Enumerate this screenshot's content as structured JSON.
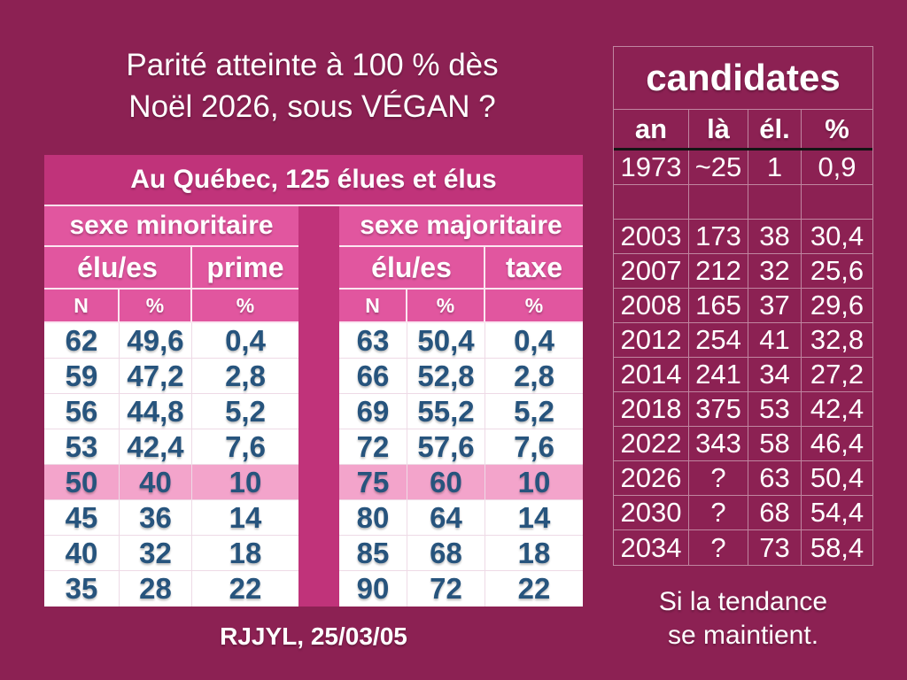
{
  "slide": {
    "title_line1": "Parité atteinte à 100 % dès",
    "title_line2": "Noël 2026, sous VÉGAN ?",
    "credit": "RJJYL, 25/03/05"
  },
  "main_table": {
    "title": "Au Québec, 125 élues et élus",
    "left_group": "sexe minoritaire",
    "right_group": "sexe majoritaire",
    "left_col1": "élu/es",
    "left_col2": "prime",
    "right_col1": "élu/es",
    "right_col2": "taxe",
    "unit_headers": [
      "N",
      "%",
      "%"
    ],
    "highlight_row_index": 4,
    "rows": [
      [
        "62",
        "49,6",
        "0,4",
        "63",
        "50,4",
        "0,4"
      ],
      [
        "59",
        "47,2",
        "2,8",
        "66",
        "52,8",
        "2,8"
      ],
      [
        "56",
        "44,8",
        "5,2",
        "69",
        "55,2",
        "5,2"
      ],
      [
        "53",
        "42,4",
        "7,6",
        "72",
        "57,6",
        "7,6"
      ],
      [
        "50",
        "40",
        "10",
        "75",
        "60",
        "10"
      ],
      [
        "45",
        "36",
        "14",
        "80",
        "64",
        "14"
      ],
      [
        "40",
        "32",
        "18",
        "85",
        "68",
        "18"
      ],
      [
        "35",
        "28",
        "22",
        "90",
        "72",
        "22"
      ]
    ]
  },
  "candidates_table": {
    "title": "candidates",
    "headers": [
      "an",
      "là",
      "él.",
      "%"
    ],
    "rows": [
      [
        "1973",
        "~25",
        "1",
        "0,9"
      ],
      [
        "",
        "",
        "",
        ""
      ],
      [
        "2003",
        "173",
        "38",
        "30,4"
      ],
      [
        "2007",
        "212",
        "32",
        "25,6"
      ],
      [
        "2008",
        "165",
        "37",
        "29,6"
      ],
      [
        "2012",
        "254",
        "41",
        "32,8"
      ],
      [
        "2014",
        "241",
        "34",
        "27,2"
      ],
      [
        "2018",
        "375",
        "53",
        "42,4"
      ],
      [
        "2022",
        "343",
        "58",
        "46,4"
      ],
      [
        "2026",
        "?",
        "63",
        "50,4"
      ],
      [
        "2030",
        "?",
        "68",
        "54,4"
      ],
      [
        "2034",
        "?",
        "73",
        "58,4"
      ]
    ],
    "note_line1": "Si la tendance",
    "note_line2": "se maintient."
  },
  "colors": {
    "background": "#8C2153",
    "band": "#C0337A",
    "header_pink": "#E1569F",
    "highlight_pink": "#F3A4CB",
    "navy_text": "#27547D",
    "grid_light_pink": "#EEDAE6",
    "header_underline": "#141414",
    "white": "#FFFFFF"
  }
}
